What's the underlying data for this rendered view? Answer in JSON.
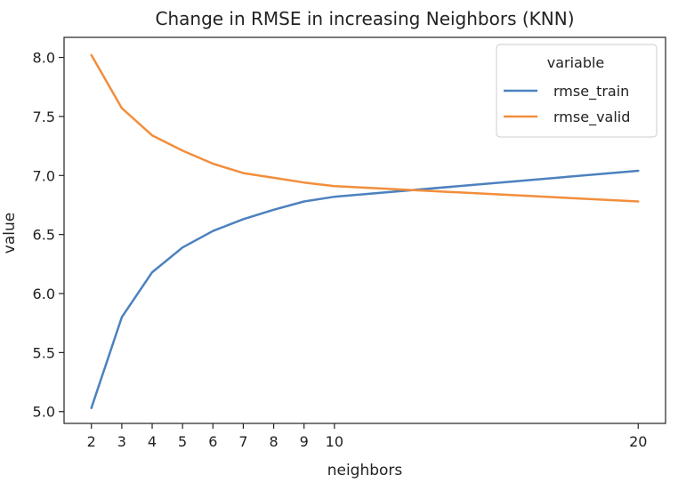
{
  "chart_data": {
    "type": "line",
    "title": "Change in RMSE in increasing Neighbors (KNN)",
    "xlabel": "neighbors",
    "ylabel": "value",
    "x_ticks": [
      2,
      3,
      4,
      5,
      6,
      7,
      8,
      9,
      10,
      20
    ],
    "y_ticks": [
      "5.0",
      "5.5",
      "6.0",
      "6.5",
      "7.0",
      "7.5",
      "8.0"
    ],
    "xlim": [
      1.1,
      20.9
    ],
    "ylim": [
      4.9,
      8.17
    ],
    "legend_title": "variable",
    "legend_position": "top-right",
    "grid": false,
    "series": [
      {
        "name": "rmse_train",
        "color": "#4c81bf",
        "x": [
          2,
          3,
          4,
          5,
          6,
          7,
          8,
          9,
          10,
          20
        ],
        "y": [
          5.03,
          5.8,
          6.18,
          6.39,
          6.53,
          6.63,
          6.71,
          6.78,
          6.82,
          7.04
        ]
      },
      {
        "name": "rmse_valid",
        "color": "#f28e3c",
        "x": [
          2,
          3,
          4,
          5,
          6,
          7,
          8,
          9,
          10,
          20
        ],
        "y": [
          8.02,
          7.57,
          7.34,
          7.21,
          7.1,
          7.02,
          6.98,
          6.94,
          6.91,
          6.78
        ]
      }
    ]
  }
}
